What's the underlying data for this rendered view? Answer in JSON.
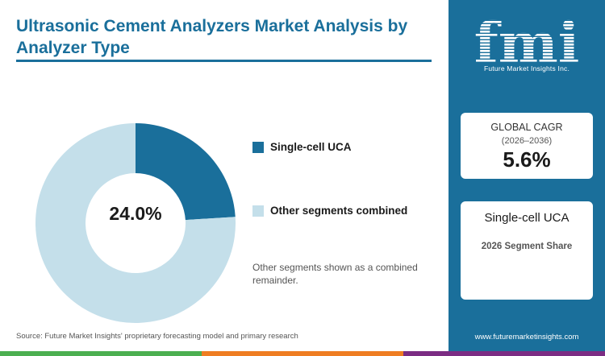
{
  "title": "Ultrasonic Cement Analyzers Market Analysis by Analyzer Type",
  "chart_data": {
    "type": "pie",
    "hole": true,
    "center_label": "24.0%",
    "categories": [
      "Single-cell UCA",
      "Other segments combined"
    ],
    "values": [
      24.0,
      76.0
    ],
    "colors": [
      "#1a6f9b",
      "#c4dfea"
    ],
    "legend_position": "right"
  },
  "note": "Other segments shown as a combined remainder.",
  "source": "Source: Future Market Insights' proprietary forecasting model and primary research",
  "sidebar": {
    "logo_text": "fmi",
    "logo_subtitle": "Future Market Insights Inc.",
    "cagr_label": "GLOBAL CAGR",
    "cagr_period": "(2026–2036)",
    "cagr_value": "5.6%",
    "segment_name": "Single-cell UCA",
    "segment_caption": "2026 Segment Share",
    "website": "www.futuremarketinsights.com"
  },
  "colors": {
    "brand": "#1a6f9b",
    "light": "#c4dfea",
    "bar": [
      "#4caf50",
      "#ef7d22",
      "#7b2c83"
    ]
  }
}
